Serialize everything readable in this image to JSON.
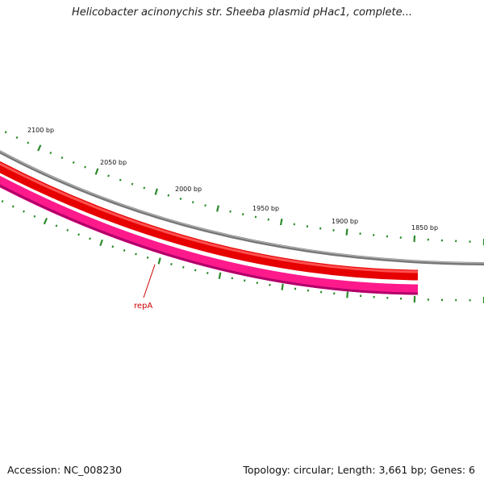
{
  "title": "Helicobacter acinonychis str. Sheeba plasmid pHac1, complete...",
  "footer": {
    "accession": "Accession: NC_008230",
    "summary": "Topology: circular; Length: 3,661 bp; Genes: 6"
  },
  "colors": {
    "backbone": "#8c8c8c",
    "gene_forward": "#ee0000",
    "gene_reverse": "#ff1493",
    "ticks": "#2a8a2a",
    "gene_label": "#cc0000"
  },
  "scale_labels": [
    "2100 bp",
    "2050 bp",
    "2000 bp",
    "1950 bp",
    "1900 bp",
    "1850 bp"
  ],
  "genes": [
    {
      "name": "repA"
    }
  ]
}
